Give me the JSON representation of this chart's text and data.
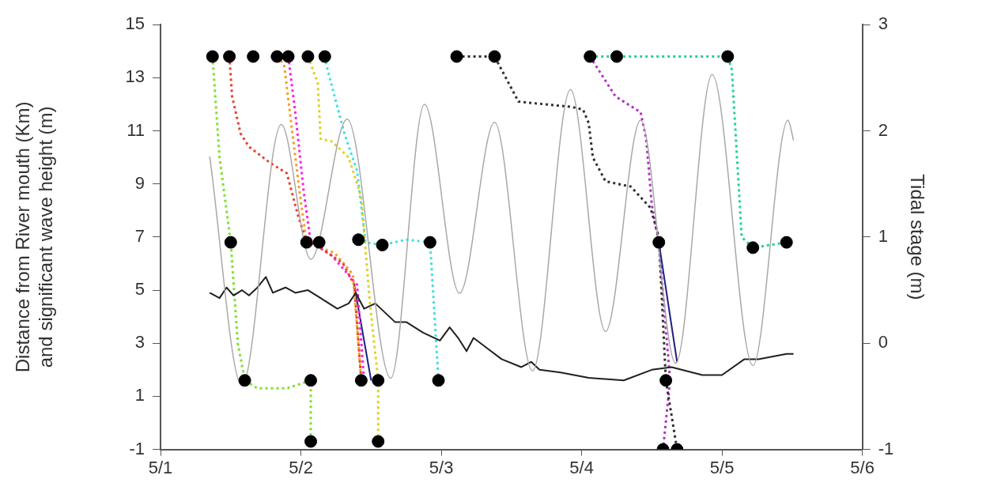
{
  "chart_data": {
    "type": "line",
    "ylabel": "Distance from River mouth (Km)\nand significant wave height (m)",
    "y2label": "Tidal stage (m)",
    "xlim": [
      "--05-01",
      "--05-06"
    ],
    "xticks": [
      {
        "value": "--05-01",
        "label": "5/1"
      },
      {
        "value": "--05-02",
        "label": "5/2"
      },
      {
        "value": "--05-03",
        "label": "5/3"
      },
      {
        "value": "--05-04",
        "label": "5/4"
      },
      {
        "value": "--05-05",
        "label": "5/5"
      },
      {
        "value": "--05-06",
        "label": "5/6"
      }
    ],
    "ylim": [
      -1,
      15
    ],
    "yticks": [
      -1,
      1,
      3,
      5,
      7,
      9,
      11,
      13,
      15
    ],
    "y2lim": [
      -1,
      3
    ],
    "y2ticks": [
      -1,
      0,
      1,
      2,
      3
    ],
    "grid": false,
    "legend": false,
    "series": [
      {
        "axis": "y2",
        "color": "#a8a8a8",
        "line_style": "solid",
        "marker": "none",
        "x": [
          "--05-01T08:24",
          "--05-01T13:55",
          "--05-01T20:38",
          "--05-02T01:41",
          "--05-02T07:55",
          "--05-02T15:22",
          "--05-02T21:07",
          "--05-03T03:07",
          "--05-03T09:07",
          "--05-03T15:36",
          "--05-03T22:05",
          "--05-04T04:05",
          "--05-04T10:05",
          "--05-04T16:05",
          "--05-04T22:19",
          "--05-05T05:17",
          "--05-05T11:17",
          "--05-05T12:14"
        ],
        "values": [
          1.76,
          -0.4,
          2.06,
          0.79,
          2.11,
          -0.33,
          2.25,
          0.47,
          2.08,
          -0.26,
          2.39,
          0.11,
          2.1,
          -0.19,
          2.53,
          -0.21,
          2.1,
          1.91
        ]
      },
      {
        "color": "#202020",
        "line_style": "solid",
        "marker": "none",
        "x": [
          "--05-01T08:24",
          "--05-01T10:05",
          "--05-01T11:17",
          "--05-01T12:29",
          "--05-01T13:55",
          "--05-01T15:07",
          "--05-01T16:34",
          "--05-01T18:00",
          "--05-01T19:12",
          "--05-01T21:22",
          "--05-01T23:02",
          "--05-02T01:12",
          "--05-02T03:22",
          "--05-02T06:14",
          "--05-02T08:10",
          "--05-02T09:22",
          "--05-02T10:48",
          "--05-02T12:43",
          "--05-02T16:05",
          "--05-02T18:00",
          "--05-02T20:53",
          "--05-02T23:46",
          "--05-03T01:26",
          "--05-03T02:53",
          "--05-03T04:19",
          "--05-03T05:31",
          "--05-03T07:55",
          "--05-03T10:19",
          "--05-03T13:41",
          "--05-03T15:22",
          "--05-03T16:48",
          "--05-03T20:24",
          "--05-04T01:12",
          "--05-04T07:12",
          "--05-04T12:00",
          "--05-04T15:22",
          "--05-04T20:38",
          "--05-05T00:00",
          "--05-05T03:50",
          "--05-05T06:14",
          "--05-05T11:02",
          "--05-05T12:14"
        ],
        "values": [
          4.9,
          4.7,
          5.1,
          4.8,
          5,
          4.8,
          5.1,
          5.5,
          4.9,
          5.1,
          4.9,
          5,
          4.7,
          4.3,
          4.5,
          4.9,
          4.3,
          4.5,
          3.8,
          3.8,
          3.4,
          3.1,
          3.6,
          3.2,
          2.7,
          3.2,
          2.8,
          2.4,
          2.1,
          2.3,
          2,
          1.9,
          1.7,
          1.6,
          2,
          2.1,
          1.8,
          1.8,
          2.4,
          2.4,
          2.6,
          2.6
        ]
      },
      {
        "color": "#80e030",
        "line_style": "dotted",
        "marker": "none",
        "x": [
          "--05-01T08:53",
          "--05-01T10:05",
          "--05-01T12:00",
          "--05-01T13:12",
          "--05-01T14:24",
          "--05-01T16:34",
          "--05-01T21:36",
          "--05-02T01:41",
          "--05-02T01:41"
        ],
        "values": [
          13.8,
          10,
          6.8,
          3,
          1.6,
          1.3,
          1.3,
          1.6,
          -0.7
        ]
      },
      {
        "color": "#e84030",
        "line_style": "dotted",
        "marker": "none",
        "x": [
          "--05-01T11:46",
          "--05-01T12:14",
          "--05-01T13:41",
          "--05-01T15:07",
          "--05-01T18:43",
          "--05-01T21:36",
          "--05-01T23:31",
          "--05-02T00:58",
          "--05-02T03:22",
          "--05-02T07:12",
          "--05-02T09:07",
          "--05-02T10:19"
        ],
        "values": [
          13.8,
          12.3,
          10.9,
          10.4,
          9.8,
          9.4,
          7.8,
          6.8,
          6.6,
          6,
          5.2,
          1.6
        ]
      },
      {
        "color": "#f0a020",
        "line_style": "dotted",
        "marker": "none",
        "x": [
          "--05-01T19:55",
          "--05-01T21:07",
          "--05-01T23:46",
          "--05-02T00:58",
          "--05-02T05:46",
          "--05-02T08:53",
          "--05-02T10:19"
        ],
        "values": [
          13.8,
          13.5,
          8.7,
          6.8,
          6.4,
          5.6,
          1.6
        ]
      },
      {
        "color": "#ff20e0",
        "line_style": "dotted",
        "marker": "none",
        "x": [
          "--05-01T21:50",
          "--05-01T23:02",
          "--05-02T00:29",
          "--05-02T01:41",
          "--05-02T05:17",
          "--05-02T09:36",
          "--05-02T10:48"
        ],
        "values": [
          13.8,
          11.7,
          8.7,
          6.8,
          6.3,
          5.2,
          1.6
        ]
      },
      {
        "color": "#e0d020",
        "line_style": "dotted",
        "marker": "none",
        "x": [
          "--05-02T01:12",
          "--05-02T02:53",
          "--05-02T03:22",
          "--05-02T05:17",
          "--05-02T08:10",
          "--05-02T10:19",
          "--05-02T11:46",
          "--05-02T13:12",
          "--05-02T13:12"
        ],
        "values": [
          13.8,
          12.8,
          10.7,
          10.6,
          10,
          8.5,
          4.6,
          1.6,
          -0.7
        ]
      },
      {
        "color": "#40e0e0",
        "line_style": "dotted",
        "marker": "none",
        "x": [
          "--05-02T04:05",
          "--05-02T04:34",
          "--05-02T07:26",
          "--05-02T09:36",
          "--05-02T11:02",
          "--05-02T13:55",
          "--05-02T18:00",
          "--05-02T22:05",
          "--05-02T23:31"
        ],
        "values": [
          13.8,
          13.3,
          10.9,
          9.5,
          6.8,
          6.7,
          6.9,
          6.8,
          1.6
        ]
      },
      {
        "color": "#202080",
        "line_style": "solid",
        "marker": "none",
        "x": [
          "--05-02T09:07",
          "--05-02T12:00",
          "--05-03T12:00",
          "--05-04T13:12",
          "--05-04T16:19"
        ],
        "values": [
          5.2,
          1.6,
          null,
          6.8,
          2.3
        ]
      },
      {
        "color": "#303030",
        "line_style": "dotted",
        "marker": "none",
        "x": [
          "--05-03T02:38",
          "--05-03T09:07",
          "--05-03T09:50",
          "--05-03T13:12",
          "--05-03T22:19",
          "--05-04T00:14",
          "--05-04T01:12",
          "--05-04T01:55",
          "--05-04T04:05",
          "--05-04T08:24",
          "--05-04T11:46",
          "--05-04T13:12",
          "--05-04T14:24",
          "--05-04T16:19"
        ],
        "values": [
          13.8,
          13.8,
          13.5,
          12.1,
          11.9,
          11.8,
          11.3,
          10,
          9.1,
          8.9,
          8.1,
          7,
          1.6,
          -1
        ]
      },
      {
        "color": "#b030c0",
        "line_style": "dotted",
        "marker": "none",
        "x": [
          "--05-04T01:26",
          "--05-04T05:46",
          "--05-04T10:05",
          "--05-04T11:02",
          "--05-04T12:00",
          "--05-04T13:12",
          "--05-04T15:07",
          "--05-04T13:55"
        ],
        "values": [
          13.8,
          12.3,
          11.7,
          10.7,
          8.2,
          6.8,
          1.6,
          -1
        ]
      },
      {
        "color": "#20d0a0",
        "line_style": "dotted",
        "marker": "none",
        "x": [
          "--05-04T01:26",
          "--05-05T00:58",
          "--05-05T01:41",
          "--05-05T03:22",
          "--05-05T05:17",
          "--05-05T11:02"
        ],
        "values": [
          13.8,
          13.8,
          13.3,
          7,
          6.6,
          6.8
        ]
      },
      {
        "type": "scatter",
        "color": "#000000",
        "marker": "circle",
        "x": [
          "--05-01T08:53",
          "--05-01T11:46",
          "--05-01T15:50",
          "--05-01T19:55",
          "--05-01T21:50",
          "--05-02T01:12",
          "--05-02T04:05",
          "--05-03T02:38",
          "--05-03T09:07",
          "--05-04T01:26",
          "--05-04T06:00",
          "--05-05T00:58",
          "--05-01T12:00",
          "--05-02T00:58",
          "--05-02T03:07",
          "--05-02T09:50",
          "--05-02T13:55",
          "--05-02T22:05",
          "--05-04T13:12",
          "--05-05T05:17",
          "--05-05T11:02",
          "--05-01T14:24",
          "--05-02T01:41",
          "--05-02T10:19",
          "--05-02T13:12",
          "--05-02T23:31",
          "--05-04T14:24",
          "--05-02T01:41",
          "--05-02T13:12",
          "--05-04T13:55",
          "--05-04T16:19"
        ],
        "values": [
          13.8,
          13.8,
          13.8,
          13.8,
          13.8,
          13.8,
          13.8,
          13.8,
          13.8,
          13.8,
          13.8,
          13.8,
          6.8,
          6.8,
          6.8,
          6.9,
          6.7,
          6.8,
          6.8,
          6.6,
          6.8,
          1.6,
          1.6,
          1.6,
          1.6,
          1.6,
          1.6,
          -0.7,
          -0.7,
          -1,
          -1
        ]
      }
    ]
  }
}
